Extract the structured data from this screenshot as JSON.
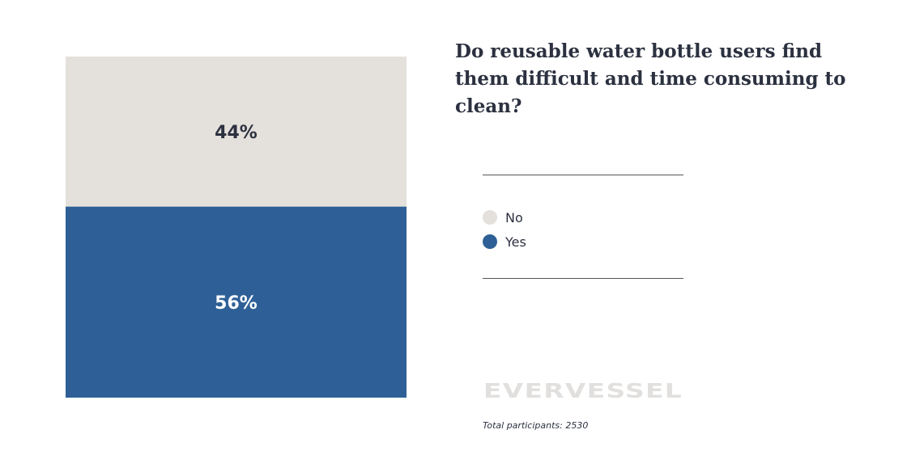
{
  "chart_data": {
    "type": "bar",
    "stacked": true,
    "normalized": true,
    "title": "Do reusable water bottle users find them difficult and time consuming to clean?",
    "series": [
      {
        "name": "No",
        "values": [
          44
        ],
        "label": "44%",
        "color": "#e4e0db",
        "label_color": "#2c3140"
      },
      {
        "name": "Yes",
        "values": [
          56
        ],
        "label": "56%",
        "color": "#2e6097",
        "label_color": "#ffffff"
      }
    ],
    "unit": "%",
    "ylim": [
      0,
      100
    ],
    "grid": false,
    "legend_position": "right"
  },
  "legend": {
    "items": [
      {
        "label": "No",
        "color": "#e4e0db"
      },
      {
        "label": "Yes",
        "color": "#2e6097"
      }
    ]
  },
  "brand": {
    "logo_text": "EVERVESSEL"
  },
  "footer": {
    "participants": "Total participants: 2530"
  }
}
